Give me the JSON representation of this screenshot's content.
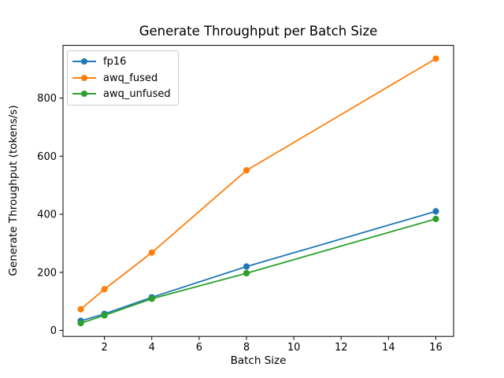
{
  "figure": {
    "background": "#ffffff"
  },
  "chart_data": {
    "type": "line",
    "title": "Generate Throughput per Batch Size",
    "xlabel": "Batch Size",
    "ylabel": "Generate Throughput (tokens/s)",
    "x": [
      1,
      2,
      4,
      8,
      16
    ],
    "series": [
      {
        "name": "fp16",
        "color": "#1f77b4",
        "values": [
          33,
          57,
          114,
          220,
          410
        ]
      },
      {
        "name": "awq_fused",
        "color": "#ff7f0e",
        "values": [
          73,
          142,
          268,
          551,
          936
        ]
      },
      {
        "name": "awq_unfused",
        "color": "#2ca02c",
        "values": [
          25,
          52,
          109,
          197,
          384
        ]
      }
    ],
    "x_ticks": [
      2,
      4,
      6,
      8,
      10,
      12,
      14,
      16
    ],
    "y_ticks": [
      0,
      200,
      400,
      600,
      800
    ],
    "xlim": [
      0.25,
      16.75
    ],
    "ylim": [
      -20.6,
      981.6
    ],
    "grid": false,
    "legend_position": "upper-left",
    "marker": "circle",
    "line_width": 1.8,
    "marker_radius": 4.1,
    "axis_color": "#000000",
    "legend_border_color": "#cccccc"
  }
}
